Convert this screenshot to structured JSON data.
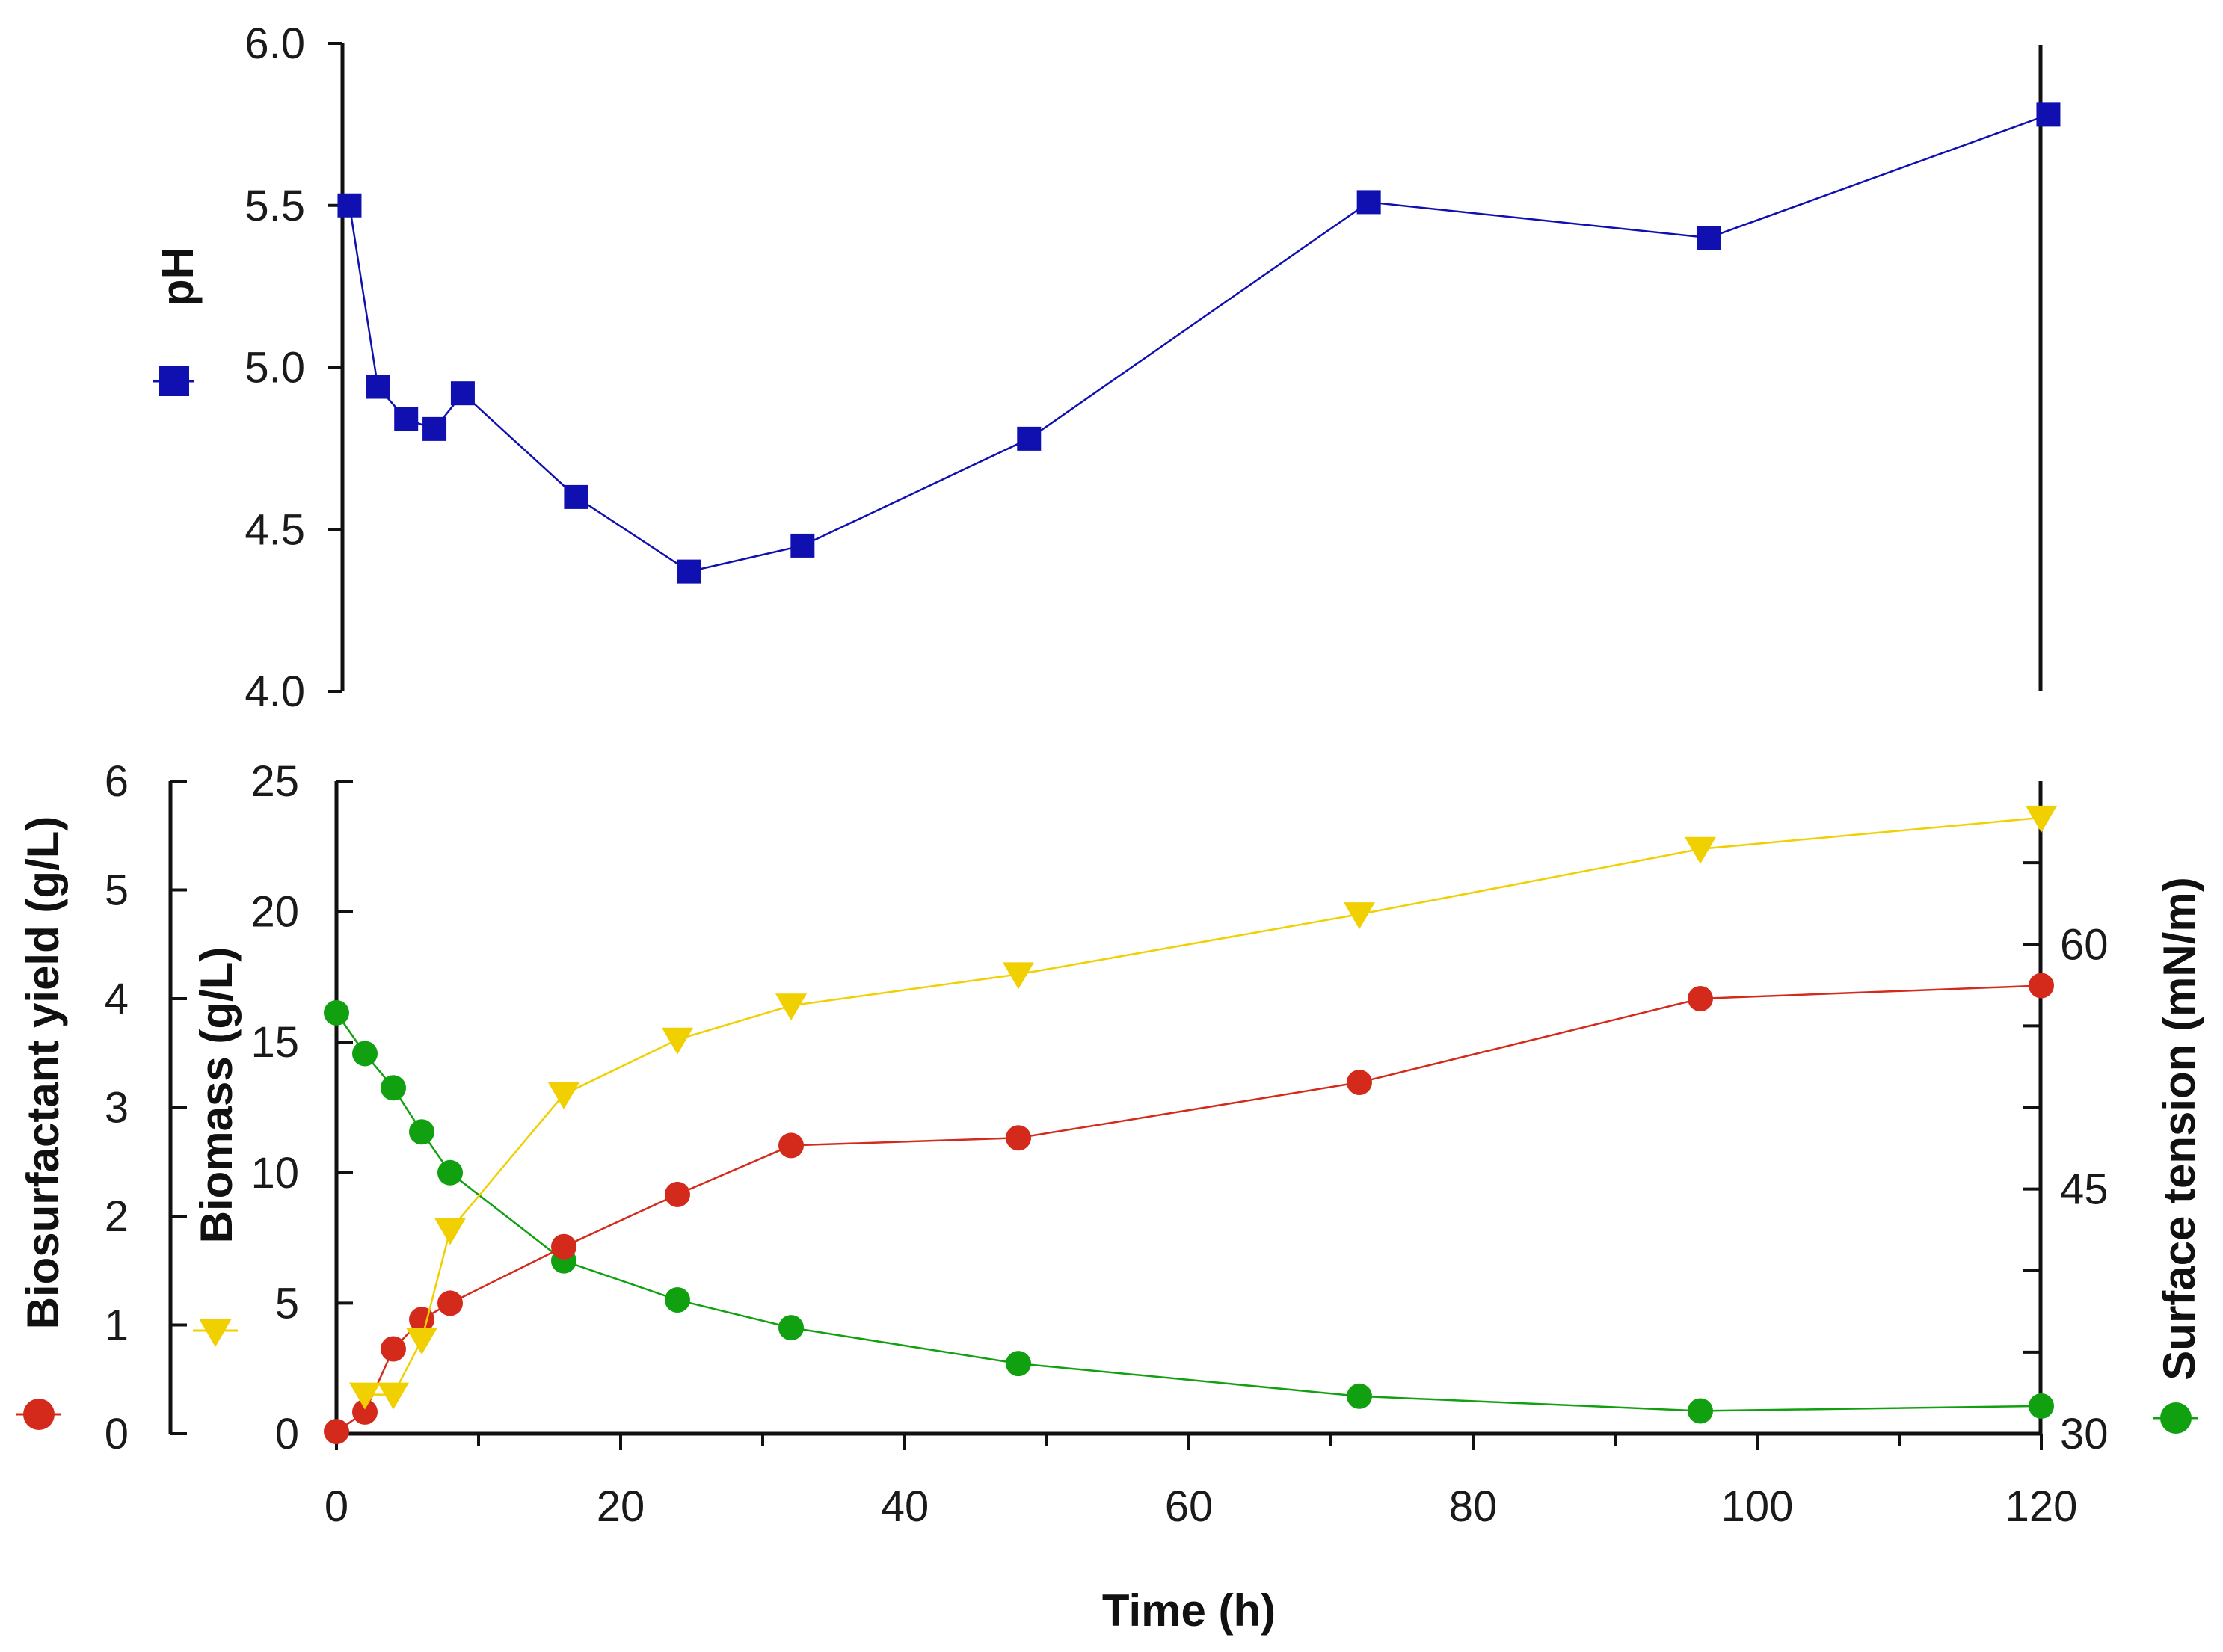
{
  "chart_data": [
    {
      "type": "line",
      "panel": "top",
      "ylabel": "pH",
      "ylim": [
        4.0,
        6.0
      ],
      "yticks": [
        "4.0",
        "4.5",
        "5.0",
        "5.5",
        "6.0"
      ],
      "ytick_values": [
        4.0,
        4.5,
        5.0,
        5.5,
        6.0
      ],
      "xlim": [
        0,
        120
      ],
      "series": [
        {
          "name": "pH",
          "color": "#1010b0",
          "marker": "square",
          "x": [
            0.5,
            2.5,
            4.5,
            6.5,
            8.5,
            16.5,
            24.5,
            32.5,
            48.5,
            72.5,
            96.5,
            120.5
          ],
          "y": [
            5.5,
            4.94,
            4.84,
            4.81,
            4.92,
            4.6,
            4.37,
            4.45,
            4.78,
            5.51,
            5.4,
            5.78
          ]
        }
      ]
    },
    {
      "type": "line",
      "panel": "bottom",
      "xlabel": "Time (h)",
      "xlim": [
        0,
        120
      ],
      "xticks": [
        "0",
        "20",
        "40",
        "60",
        "80",
        "100",
        "120"
      ],
      "xtick_values": [
        0,
        20,
        40,
        60,
        80,
        100,
        120
      ],
      "axes": {
        "biosurfactant": {
          "label": "Biosurfactant yield (g/L)",
          "ylim": [
            0,
            6
          ],
          "ticks": [
            "0",
            "1",
            "2",
            "3",
            "4",
            "5",
            "6"
          ],
          "tick_values": [
            0,
            1,
            2,
            3,
            4,
            5,
            6
          ]
        },
        "biomass": {
          "label": "Biomass (g/L)",
          "ylim": [
            0,
            25
          ],
          "ticks": [
            "0",
            "5",
            "10",
            "15",
            "20",
            "25"
          ],
          "tick_values": [
            0,
            5,
            10,
            15,
            20,
            25
          ]
        },
        "surface_tension": {
          "label": "Surface tension (mN/m)",
          "ylim": [
            30,
            70
          ],
          "ticks": [
            "30",
            "45",
            "60"
          ],
          "tick_values": [
            30,
            45,
            60
          ],
          "minor_tick_values": [
            35,
            40,
            50,
            55,
            65
          ]
        }
      },
      "series": [
        {
          "name": "Biosurfactant yield",
          "axis": "biosurfactant",
          "color": "#d42a1c",
          "marker": "circle",
          "x": [
            0,
            2,
            4,
            6,
            8,
            16,
            24,
            32,
            48,
            72,
            96,
            120
          ],
          "y": [
            0.02,
            0.2,
            0.78,
            1.05,
            1.2,
            1.72,
            2.2,
            2.65,
            2.72,
            3.23,
            4.0,
            4.12
          ]
        },
        {
          "name": "Biomass",
          "axis": "biomass",
          "color": "#f0d000",
          "marker": "triangle-down",
          "x": [
            2,
            4,
            6,
            8,
            16,
            24,
            32,
            48,
            72,
            96,
            120
          ],
          "y": [
            1.5,
            1.5,
            3.6,
            7.8,
            13.0,
            15.1,
            16.4,
            17.6,
            19.9,
            22.4,
            23.6
          ]
        },
        {
          "name": "Surface tension",
          "axis": "surface_tension",
          "color": "#10a010",
          "marker": "circle",
          "x": [
            0,
            2,
            4,
            6,
            8,
            16,
            24,
            32,
            48,
            72,
            96,
            120
          ],
          "y": [
            55.8,
            53.3,
            51.2,
            48.5,
            46.0,
            40.6,
            38.2,
            36.5,
            34.3,
            32.3,
            31.4,
            31.7
          ]
        }
      ]
    }
  ]
}
